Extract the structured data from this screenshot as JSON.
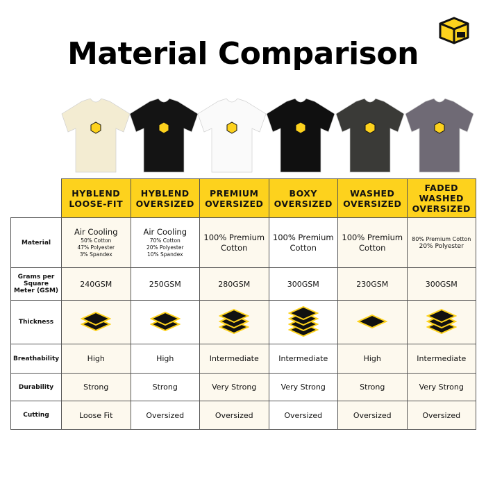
{
  "header": {
    "title": "Material Comparison"
  },
  "products": [
    {
      "name": "HYBLEND LOOSE-FIT",
      "shirt_color": "#f3ecd2"
    },
    {
      "name": "HYBLEND OVERSIZED",
      "shirt_color": "#141414"
    },
    {
      "name": "PREMIUM OVERSIZED",
      "shirt_color": "#fafafa"
    },
    {
      "name": "BOXY OVERSIZED",
      "shirt_color": "#101010"
    },
    {
      "name": "WASHED OVERSIZED",
      "shirt_color": "#3a3a37"
    },
    {
      "name": "FADED WASHED OVERSIZED",
      "shirt_color": "#6f6a75"
    }
  ],
  "table": {
    "row_labels": [
      "Material",
      "Grams per Square Meter (GSM)",
      "Thickness",
      "Breathability",
      "Durability",
      "Cutting"
    ],
    "material": [
      {
        "main": "Air Cooling",
        "details": [
          "50% Cotton",
          "47% Polyester",
          "3% Spandex"
        ]
      },
      {
        "main": "Air Cooling",
        "details": [
          "70% Cotton",
          "20% Polyester",
          "10% Spandex"
        ]
      },
      {
        "main": "100% Premium Cotton"
      },
      {
        "main": "100% Premium Cotton"
      },
      {
        "main": "100% Premium Cotton"
      },
      {
        "details": [
          "80% Premium Cotton"
        ],
        "main": "20% Polyester"
      }
    ],
    "gsm": [
      "240GSM",
      "250GSM",
      "280GSM",
      "300GSM",
      "230GSM",
      "300GSM"
    ],
    "thickness_layers": [
      2,
      2,
      3,
      4,
      1,
      3
    ],
    "breathability": [
      "High",
      "High",
      "Intermediate",
      "Intermediate",
      "High",
      "Intermediate"
    ],
    "durability": [
      "Strong",
      "Strong",
      "Very Strong",
      "Very Strong",
      "Strong",
      "Very Strong"
    ],
    "cutting": [
      "Loose Fit",
      "Oversized",
      "Oversized",
      "Oversized",
      "Oversized",
      "Oversized"
    ]
  }
}
